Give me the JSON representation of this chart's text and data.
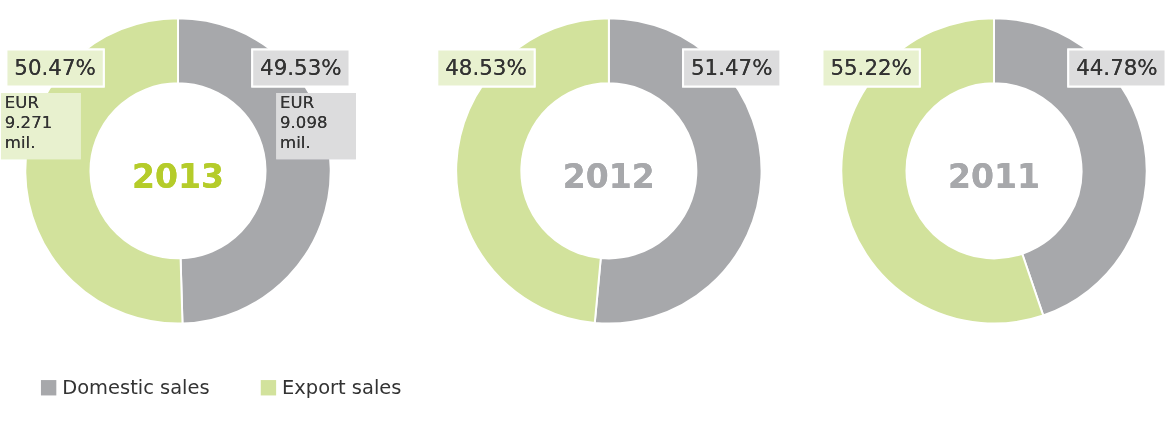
{
  "chart_data": [
    {
      "type": "donut",
      "title": "2013",
      "categories": [
        "Domestic sales",
        "Export sales"
      ],
      "values": [
        49.53,
        50.47
      ],
      "colors": [
        "#a7a8ab",
        "#d2e29c"
      ],
      "value_labels": [
        "49.53%",
        "50.47%"
      ],
      "annotations": [
        "EUR 9.271 mil.",
        "EUR 9.098 mil."
      ],
      "legend": "bottom"
    },
    {
      "type": "donut",
      "title": "2012",
      "categories": [
        null,
        null
      ],
      "values": [
        51.47,
        48.53
      ],
      "colors": [
        "#a7a8ab",
        "#d2e29c"
      ],
      "value_labels": [
        "51.47%",
        "48.53%"
      ]
    },
    {
      "type": "donut",
      "title": "2011",
      "categories": [
        null,
        null
      ],
      "values": [
        44.78,
        55.22
      ],
      "colors": [
        "#a7a8ab",
        "#d2e29c"
      ],
      "value_labels": [
        "44.78%",
        "55.22%"
      ]
    }
  ]
}
